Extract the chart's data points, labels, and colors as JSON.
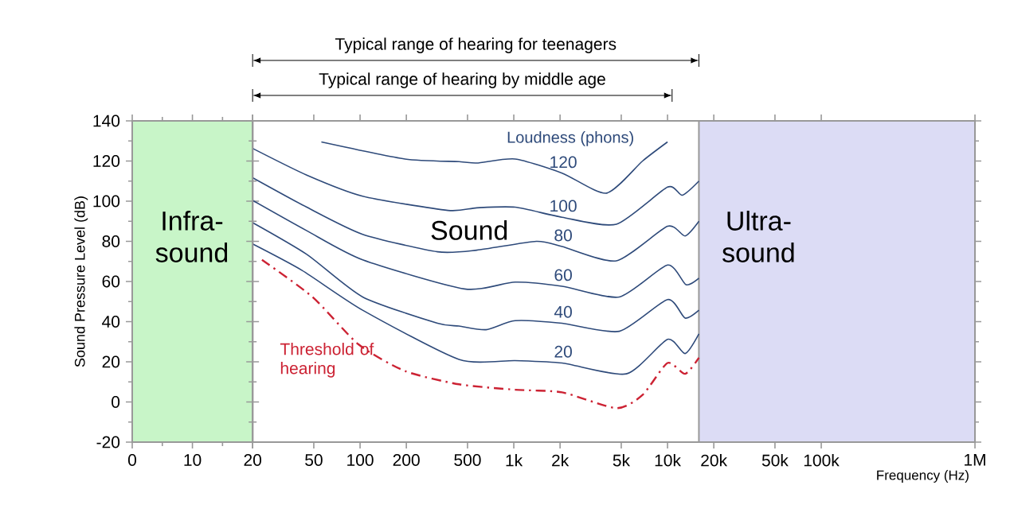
{
  "chart_data": [
    {
      "type": "line",
      "ylabel": "Sound Pressure Level (dB)",
      "xlim": [
        0,
        20
      ],
      "xticks": [
        0,
        10,
        {
          "value": 20,
          "label": null
        }
      ],
      "ylim": [
        -20,
        140
      ],
      "yticks": [
        -20,
        0,
        20,
        40,
        60,
        80,
        100,
        120,
        140
      ],
      "bands": [
        {
          "axis": "x",
          "from": 0,
          "to": 20,
          "label": "Infra-sound",
          "color": "#c8f5c8"
        }
      ]
    },
    {
      "type": "line",
      "xlabel": "Frequency (Hz)",
      "log": "x",
      "tick_labels": "x",
      "xlim": [
        20,
        1000000
      ],
      "xticks": [
        20,
        50,
        100,
        200,
        500,
        {
          "value": 1000,
          "label": "1k"
        },
        {
          "value": 2000,
          "label": "2k"
        },
        {
          "value": 5000,
          "label": "5k"
        },
        {
          "value": 10000,
          "label": "10k"
        },
        {
          "value": 20000,
          "label": "20k"
        },
        {
          "value": 50000,
          "label": "50k"
        },
        {
          "value": 100000,
          "label": "100k"
        },
        {
          "value": 1000000,
          "label": "1M"
        }
      ],
      "ylim": [
        -20,
        140
      ],
      "yticks": [
        -20,
        0,
        20,
        40,
        60,
        80,
        100,
        120,
        140
      ],
      "marker": "none",
      "bands": [
        {
          "axis": "x",
          "from": 16000,
          "to": 1000000,
          "label": "Ultra-sound",
          "color": "#dcdcf5"
        }
      ],
      "series": [
        {
          "name": "120",
          "color": "#2e4a7a",
          "line_style": "solid",
          "x": [
            56,
            196,
            440,
            574,
            1020,
            2060,
            4010,
            6880,
            10000
          ],
          "values": [
            129.5,
            121,
            119.7,
            119,
            121,
            114,
            104,
            120,
            129.5
          ]
        },
        {
          "name": "100",
          "color": "#2e4a7a",
          "line_style": "solid",
          "x": [
            20,
            45,
            104,
            373,
            574,
            1020,
            2060,
            4650,
            10000,
            12480,
            16000
          ],
          "values": [
            126.3,
            113,
            102.5,
            95.4,
            96.7,
            97,
            92,
            88.5,
            107,
            103,
            110
          ]
        },
        {
          "name": "80",
          "color": "#2e4a7a",
          "line_style": "solid",
          "x": [
            20,
            45,
            104,
            319,
            574,
            1400,
            2060,
            4650,
            10000,
            13010,
            16000
          ],
          "values": [
            111.7,
            97,
            83.5,
            74.8,
            75.6,
            80,
            77.4,
            70.3,
            87.5,
            82.7,
            90
          ]
        },
        {
          "name": "60",
          "color": "#2e4a7a",
          "line_style": "solid",
          "x": [
            20,
            45,
            104,
            478,
            1020,
            2060,
            4860,
            10000,
            13200,
            16000
          ],
          "values": [
            100.4,
            85.3,
            70.8,
            56.3,
            59.7,
            57.6,
            52.3,
            68.2,
            58.4,
            61.6
          ]
        },
        {
          "name": "40",
          "color": "#2e4a7a",
          "line_style": "solid",
          "x": [
            20,
            45,
            104,
            319,
            440,
            660,
            1020,
            2060,
            4860,
            10000,
            13010,
            16000
          ],
          "values": [
            89.3,
            73.5,
            52.3,
            39.2,
            37.8,
            36,
            40.5,
            39.2,
            35.2,
            51,
            41.8,
            45.7
          ]
        },
        {
          "name": "20",
          "color": "#2e4a7a",
          "line_style": "solid",
          "x": [
            20,
            42,
            104,
            440,
            1020,
            2060,
            5400,
            10000,
            13010,
            16000
          ],
          "values": [
            78.7,
            65.5,
            45.7,
            21.2,
            20.6,
            19.4,
            14,
            31.2,
            24.1,
            33.9
          ]
        },
        {
          "name": "Threshold of hearing",
          "color": "#cc2233",
          "line_style": "dashed",
          "x": [
            23,
            49,
            98,
            196,
            440,
            1020,
            2060,
            4650,
            6880,
            10000,
            13010,
            16000
          ],
          "values": [
            70.8,
            52.3,
            28.6,
            15.4,
            8.8,
            6.1,
            4.8,
            -3.1,
            3.5,
            19.4,
            14,
            22
          ]
        }
      ],
      "annotations": [
        "Typical range of hearing for teenagers",
        "Typical range of hearing by middle age",
        "Loudness (phons)",
        "Sound"
      ]
    }
  ]
}
